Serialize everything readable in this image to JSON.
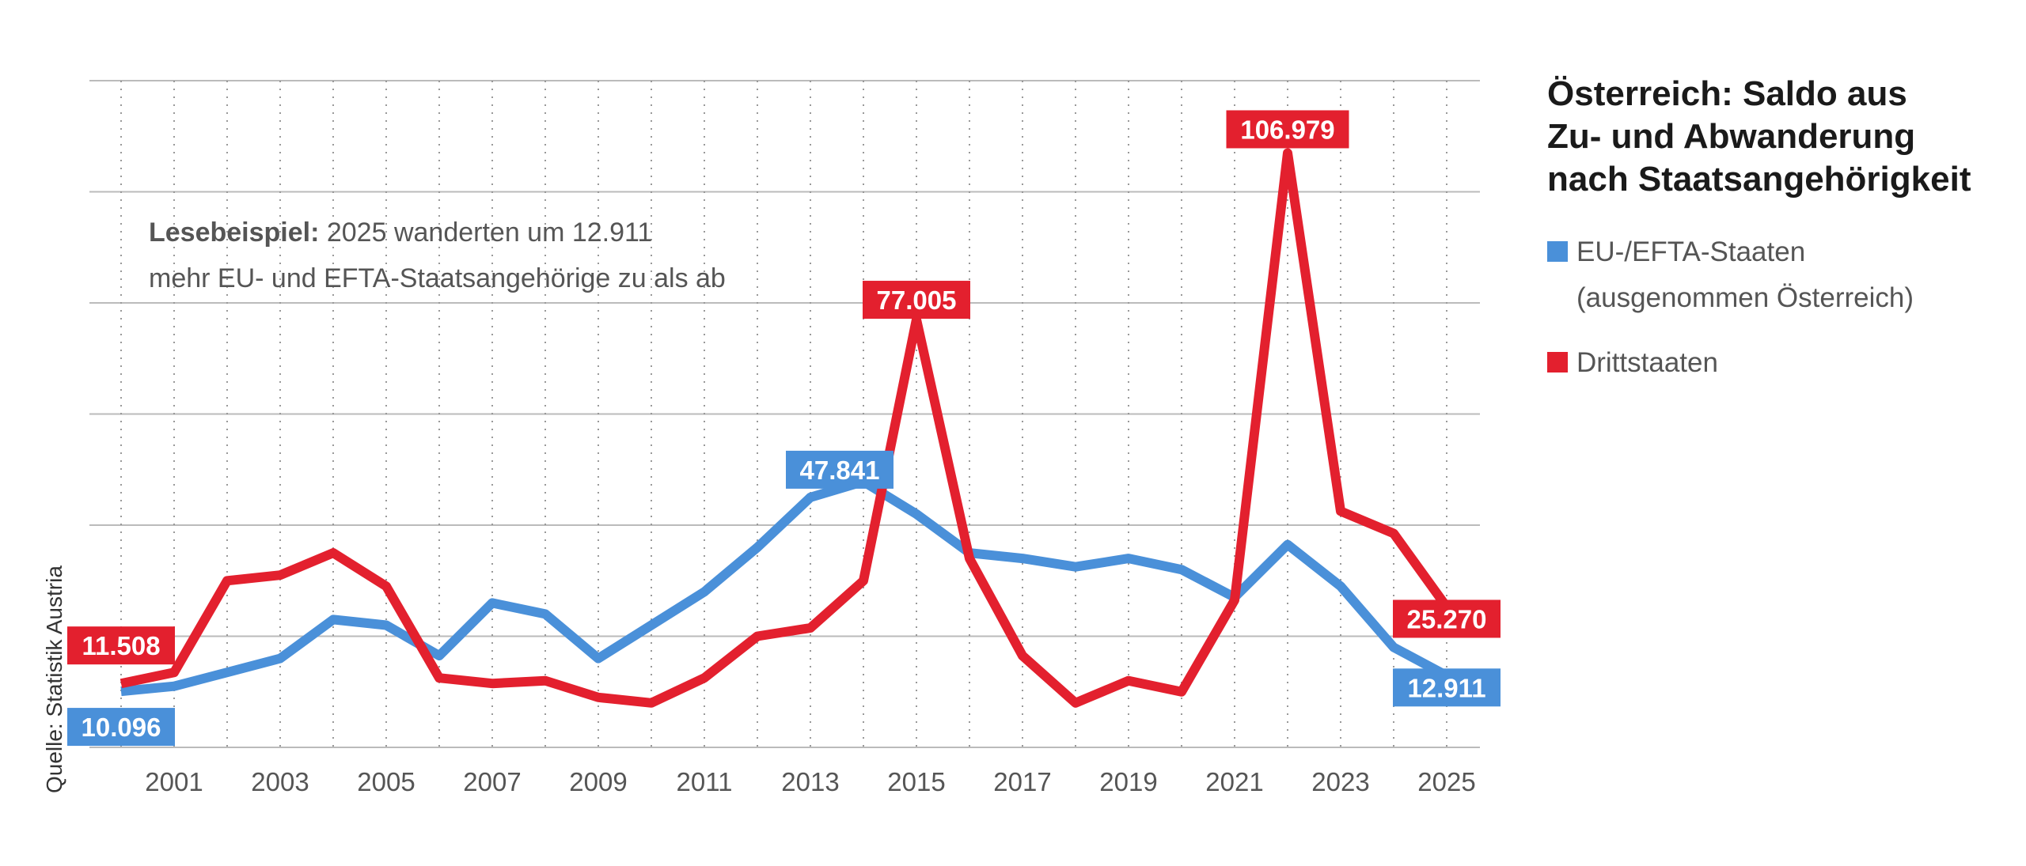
{
  "title": {
    "line1": "Österreich: Saldo aus",
    "line2": "Zu- und Abwanderung",
    "line3": "nach Staatsangehörigkeit"
  },
  "legend": {
    "eu_line1": "EU-/EFTA-Staaten",
    "eu_line2": "(ausgenommen Österreich)",
    "third": "Drittstaaten"
  },
  "annotation": {
    "bold": "Lesebeispiel:",
    "text1": " 2025 wanderten um 12.911",
    "text2": "mehr EU- und EFTA-Staatsangehörige zu als ab"
  },
  "source": "Quelle: Statistik Austria",
  "colors": {
    "eu": "#4a90d9",
    "third": "#e3202e",
    "grid": "#bbbbbb",
    "vgrid": "#999999"
  },
  "chart_data": {
    "type": "line",
    "x": [
      2000,
      2001,
      2002,
      2003,
      2004,
      2005,
      2006,
      2007,
      2008,
      2009,
      2010,
      2011,
      2012,
      2013,
      2014,
      2015,
      2016,
      2017,
      2018,
      2019,
      2020,
      2021,
      2022,
      2023,
      2024,
      2025
    ],
    "xticks": [
      2001,
      2003,
      2005,
      2007,
      2009,
      2011,
      2013,
      2015,
      2017,
      2019,
      2021,
      2023,
      2025
    ],
    "ylim": [
      0,
      120000
    ],
    "grid": true,
    "legend_position": "right",
    "series": [
      {
        "name": "EU-/EFTA-Staaten (ausgenommen Österreich)",
        "key": "eu",
        "values": [
          10096,
          11000,
          13500,
          16000,
          23000,
          22000,
          16500,
          26000,
          24000,
          16000,
          22000,
          28000,
          36000,
          45000,
          47841,
          42000,
          35000,
          34000,
          32500,
          34000,
          32000,
          27000,
          36500,
          29000,
          18000,
          12911
        ]
      },
      {
        "name": "Drittstaaten",
        "key": "third",
        "values": [
          11508,
          13500,
          30000,
          31000,
          35000,
          29000,
          12500,
          11500,
          12000,
          9000,
          8000,
          12500,
          20000,
          21500,
          30000,
          77005,
          34000,
          16500,
          8000,
          12000,
          10000,
          26500,
          106979,
          42500,
          38500,
          25270
        ]
      }
    ],
    "labels": [
      {
        "series": "eu",
        "x": 2000,
        "value": 10096,
        "text": "10.096"
      },
      {
        "series": "eu",
        "x": 2014,
        "value": 47841,
        "text": "47.841"
      },
      {
        "series": "eu",
        "x": 2025,
        "value": 12911,
        "text": "12.911"
      },
      {
        "series": "third",
        "x": 2000,
        "value": 11508,
        "text": "11.508"
      },
      {
        "series": "third",
        "x": 2015,
        "value": 77005,
        "text": "77.005"
      },
      {
        "series": "third",
        "x": 2022,
        "value": 106979,
        "text": "106.979"
      },
      {
        "series": "third",
        "x": 2025,
        "value": 25270,
        "text": "25.270"
      }
    ]
  }
}
